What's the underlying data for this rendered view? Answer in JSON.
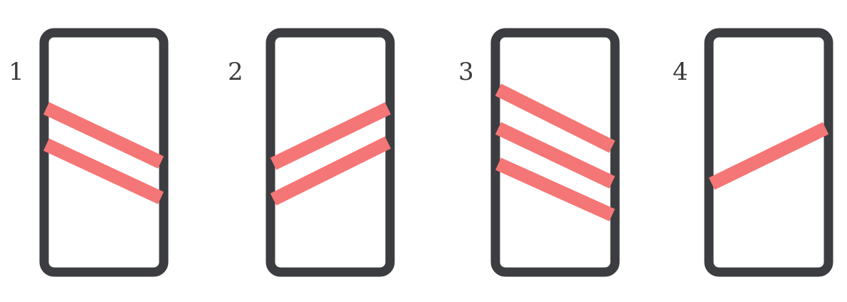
{
  "colors": {
    "background": "#ffffff",
    "frame": "#3c3d40",
    "stripe": "#f57676",
    "number_text": "#3a3a3a"
  },
  "signs": [
    {
      "number": "1",
      "stripe_count": 2,
      "stripe_direction": "descending-to-right"
    },
    {
      "number": "2",
      "stripe_count": 2,
      "stripe_direction": "ascending-to-right"
    },
    {
      "number": "3",
      "stripe_count": 3,
      "stripe_direction": "descending-to-right"
    },
    {
      "number": "4",
      "stripe_count": 1,
      "stripe_direction": "ascending-to-right"
    }
  ]
}
